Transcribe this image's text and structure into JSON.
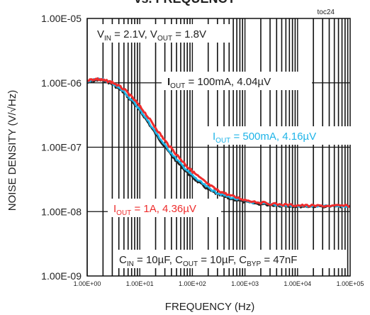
{
  "chart_data": {
    "type": "line",
    "title": "vs. FREQUENCY",
    "chart_id": "toc24",
    "xlabel": "FREQUENCY (Hz)",
    "ylabel": "NOISE DENSITY (V/√Hz)",
    "x_scale": "log",
    "y_scale": "log",
    "xlim": [
      1,
      100000
    ],
    "ylim": [
      1e-09,
      1e-05
    ],
    "x_ticks": [
      "1.00E+00",
      "1.00E+01",
      "1.00E+02",
      "1.00E+03",
      "1.00E+04",
      "1.00E+05"
    ],
    "y_ticks": [
      "1.00E-09",
      "1.00E-08",
      "1.00E-07",
      "1.00E-06",
      "1.00E-05"
    ],
    "grid": true,
    "annotations": {
      "conditions_top": "VIN = 2.1V, VOUT = 1.8V",
      "conditions_bottom": "CIN = 10µF, COUT = 10µF, CBYP = 47nF"
    },
    "series": [
      {
        "name": "IOUT = 100mA, 4.04µV",
        "color": "#222222",
        "x": [
          1,
          1.5,
          2,
          3,
          5,
          8,
          12,
          20,
          30,
          50,
          80,
          120,
          200,
          300,
          500,
          1000,
          2000,
          5000,
          10000,
          20000,
          50000,
          100000
        ],
        "y": [
          1e-06,
          1.1e-06,
          1.1e-06,
          9.5e-07,
          7e-07,
          4.6e-07,
          3e-07,
          1.6e-07,
          1e-07,
          6e-08,
          4e-08,
          3e-08,
          2.2e-08,
          1.85e-08,
          1.6e-08,
          1.4e-08,
          1.3e-08,
          1.23e-08,
          1.2e-08,
          1.2e-08,
          1.2e-08,
          1.2e-08
        ]
      },
      {
        "name": "IOUT = 500mA, 4.16µV",
        "color": "#1fb4e8",
        "x": [
          1,
          1.5,
          2,
          3,
          5,
          8,
          12,
          20,
          30,
          50,
          80,
          120,
          200,
          300,
          500,
          1000,
          2000,
          5000,
          10000,
          20000,
          50000,
          100000
        ],
        "y": [
          1.05e-06,
          1.15e-06,
          1.12e-06,
          9.8e-07,
          7.3e-07,
          4.8e-07,
          3.15e-07,
          1.7e-07,
          1.07e-07,
          6.5e-08,
          4.3e-08,
          3.2e-08,
          2.35e-08,
          1.95e-08,
          1.68e-08,
          1.45e-08,
          1.33e-08,
          1.25e-08,
          1.22e-08,
          1.21e-08,
          1.21e-08,
          1.2e-08
        ]
      },
      {
        "name": "IOUT = 1A, 4.36µV",
        "color": "#ee2d2d",
        "x": [
          1,
          1.5,
          2,
          3,
          5,
          8,
          12,
          20,
          30,
          50,
          80,
          120,
          200,
          300,
          500,
          1000,
          2000,
          5000,
          10000,
          20000,
          50000,
          100000
        ],
        "y": [
          1.1e-06,
          1.15e-06,
          1.1e-06,
          1.02e-06,
          8e-07,
          5.4e-07,
          3.6e-07,
          2e-07,
          1.27e-07,
          7.7e-08,
          5e-08,
          3.7e-08,
          2.65e-08,
          2.15e-08,
          1.8e-08,
          1.52e-08,
          1.38e-08,
          1.28e-08,
          1.25e-08,
          1.23e-08,
          1.23e-08,
          1.23e-08
        ]
      }
    ]
  }
}
